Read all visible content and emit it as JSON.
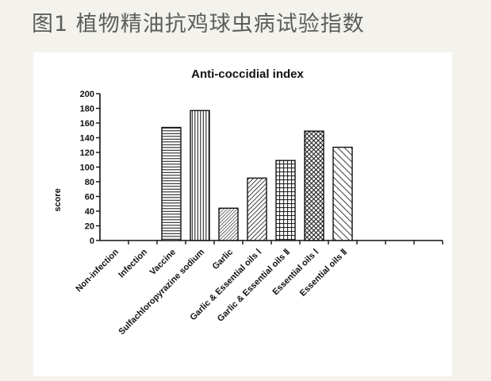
{
  "slide": {
    "title": "图1 植物精油抗鸡球虫病试验指数"
  },
  "chart_data": {
    "type": "bar",
    "title": "Anti-coccidial index",
    "xlabel": "",
    "ylabel": "score",
    "ylim": [
      0,
      200
    ],
    "yticks": [
      0,
      20,
      40,
      60,
      80,
      100,
      120,
      140,
      160,
      180,
      200
    ],
    "grid": false,
    "categories": [
      "Non-infection",
      "Infection",
      "Vaccine",
      "Sulfachloropyrazine sodium",
      "Garlic",
      "Garlic & Essential oils Ⅰ",
      "Garlic & Essential oils Ⅱ",
      "Essential oils Ⅰ",
      "Essential oils Ⅱ",
      "",
      "",
      ""
    ],
    "values": [
      0,
      0,
      154,
      177,
      44,
      85,
      109,
      149,
      127,
      0,
      0,
      0
    ],
    "patterns": [
      "none",
      "none",
      "hlines",
      "vlines",
      "diag-dense",
      "diag-right",
      "grid",
      "crosshatch",
      "diag-wide",
      "none",
      "none",
      "none"
    ],
    "colors": {
      "stroke": "#111111",
      "fill": "#ffffff",
      "axis": "#111111"
    }
  }
}
